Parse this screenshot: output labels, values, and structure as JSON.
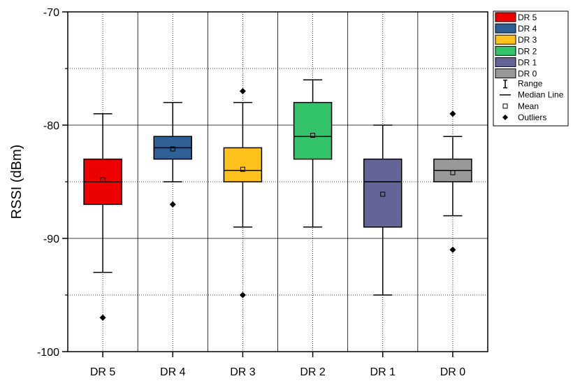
{
  "chart_data": {
    "type": "box",
    "title": "",
    "xlabel": "",
    "ylabel": "RSSI (dBm)",
    "ylim": [
      -100,
      -70
    ],
    "yticks": [
      -100,
      -90,
      -80,
      -70
    ],
    "y_minor_gridlines": [
      -95,
      -85,
      -75
    ],
    "grid": true,
    "categories": [
      "DR 5",
      "DR 4",
      "DR 3",
      "DR 2",
      "DR 1",
      "DR 0"
    ],
    "series": [
      {
        "name": "DR 5",
        "color": "#ee0000",
        "whisker_low": -93,
        "q1": -87,
        "median": -85,
        "q3": -83,
        "whisker_high": -79,
        "mean": -84.8,
        "outliers": [
          -97
        ]
      },
      {
        "name": "DR 4",
        "color": "#2e5f95",
        "whisker_low": -85,
        "q1": -83,
        "median": -82,
        "q3": -81,
        "whisker_high": -78,
        "mean": -82.1,
        "outliers": [
          -87
        ]
      },
      {
        "name": "DR 3",
        "color": "#ffc21c",
        "whisker_low": -89,
        "q1": -85,
        "median": -84,
        "q3": -82,
        "whisker_high": -78,
        "mean": -83.9,
        "outliers": [
          -77,
          -95
        ]
      },
      {
        "name": "DR 2",
        "color": "#33c46a",
        "whisker_low": -89,
        "q1": -83,
        "median": -81,
        "q3": -78,
        "whisker_high": -76,
        "mean": -80.9,
        "outliers": []
      },
      {
        "name": "DR 1",
        "color": "#646499",
        "whisker_low": -95,
        "q1": -89,
        "median": -85,
        "q3": -83,
        "whisker_high": -80,
        "mean": -86.1,
        "outliers": []
      },
      {
        "name": "DR 0",
        "color": "#999999",
        "whisker_low": -88,
        "q1": -85,
        "median": -84,
        "q3": -83,
        "whisker_high": -81,
        "mean": -84.2,
        "outliers": [
          -79,
          -91
        ]
      }
    ],
    "legend": {
      "placement": "top-right-outside",
      "series_labels": [
        "DR 5",
        "DR 4",
        "DR 3",
        "DR 2",
        "DR 1",
        "DR 0"
      ],
      "range_label": "Range",
      "median_label": "Median Line",
      "mean_label": "Mean",
      "outliers_label": "Outliers"
    }
  }
}
